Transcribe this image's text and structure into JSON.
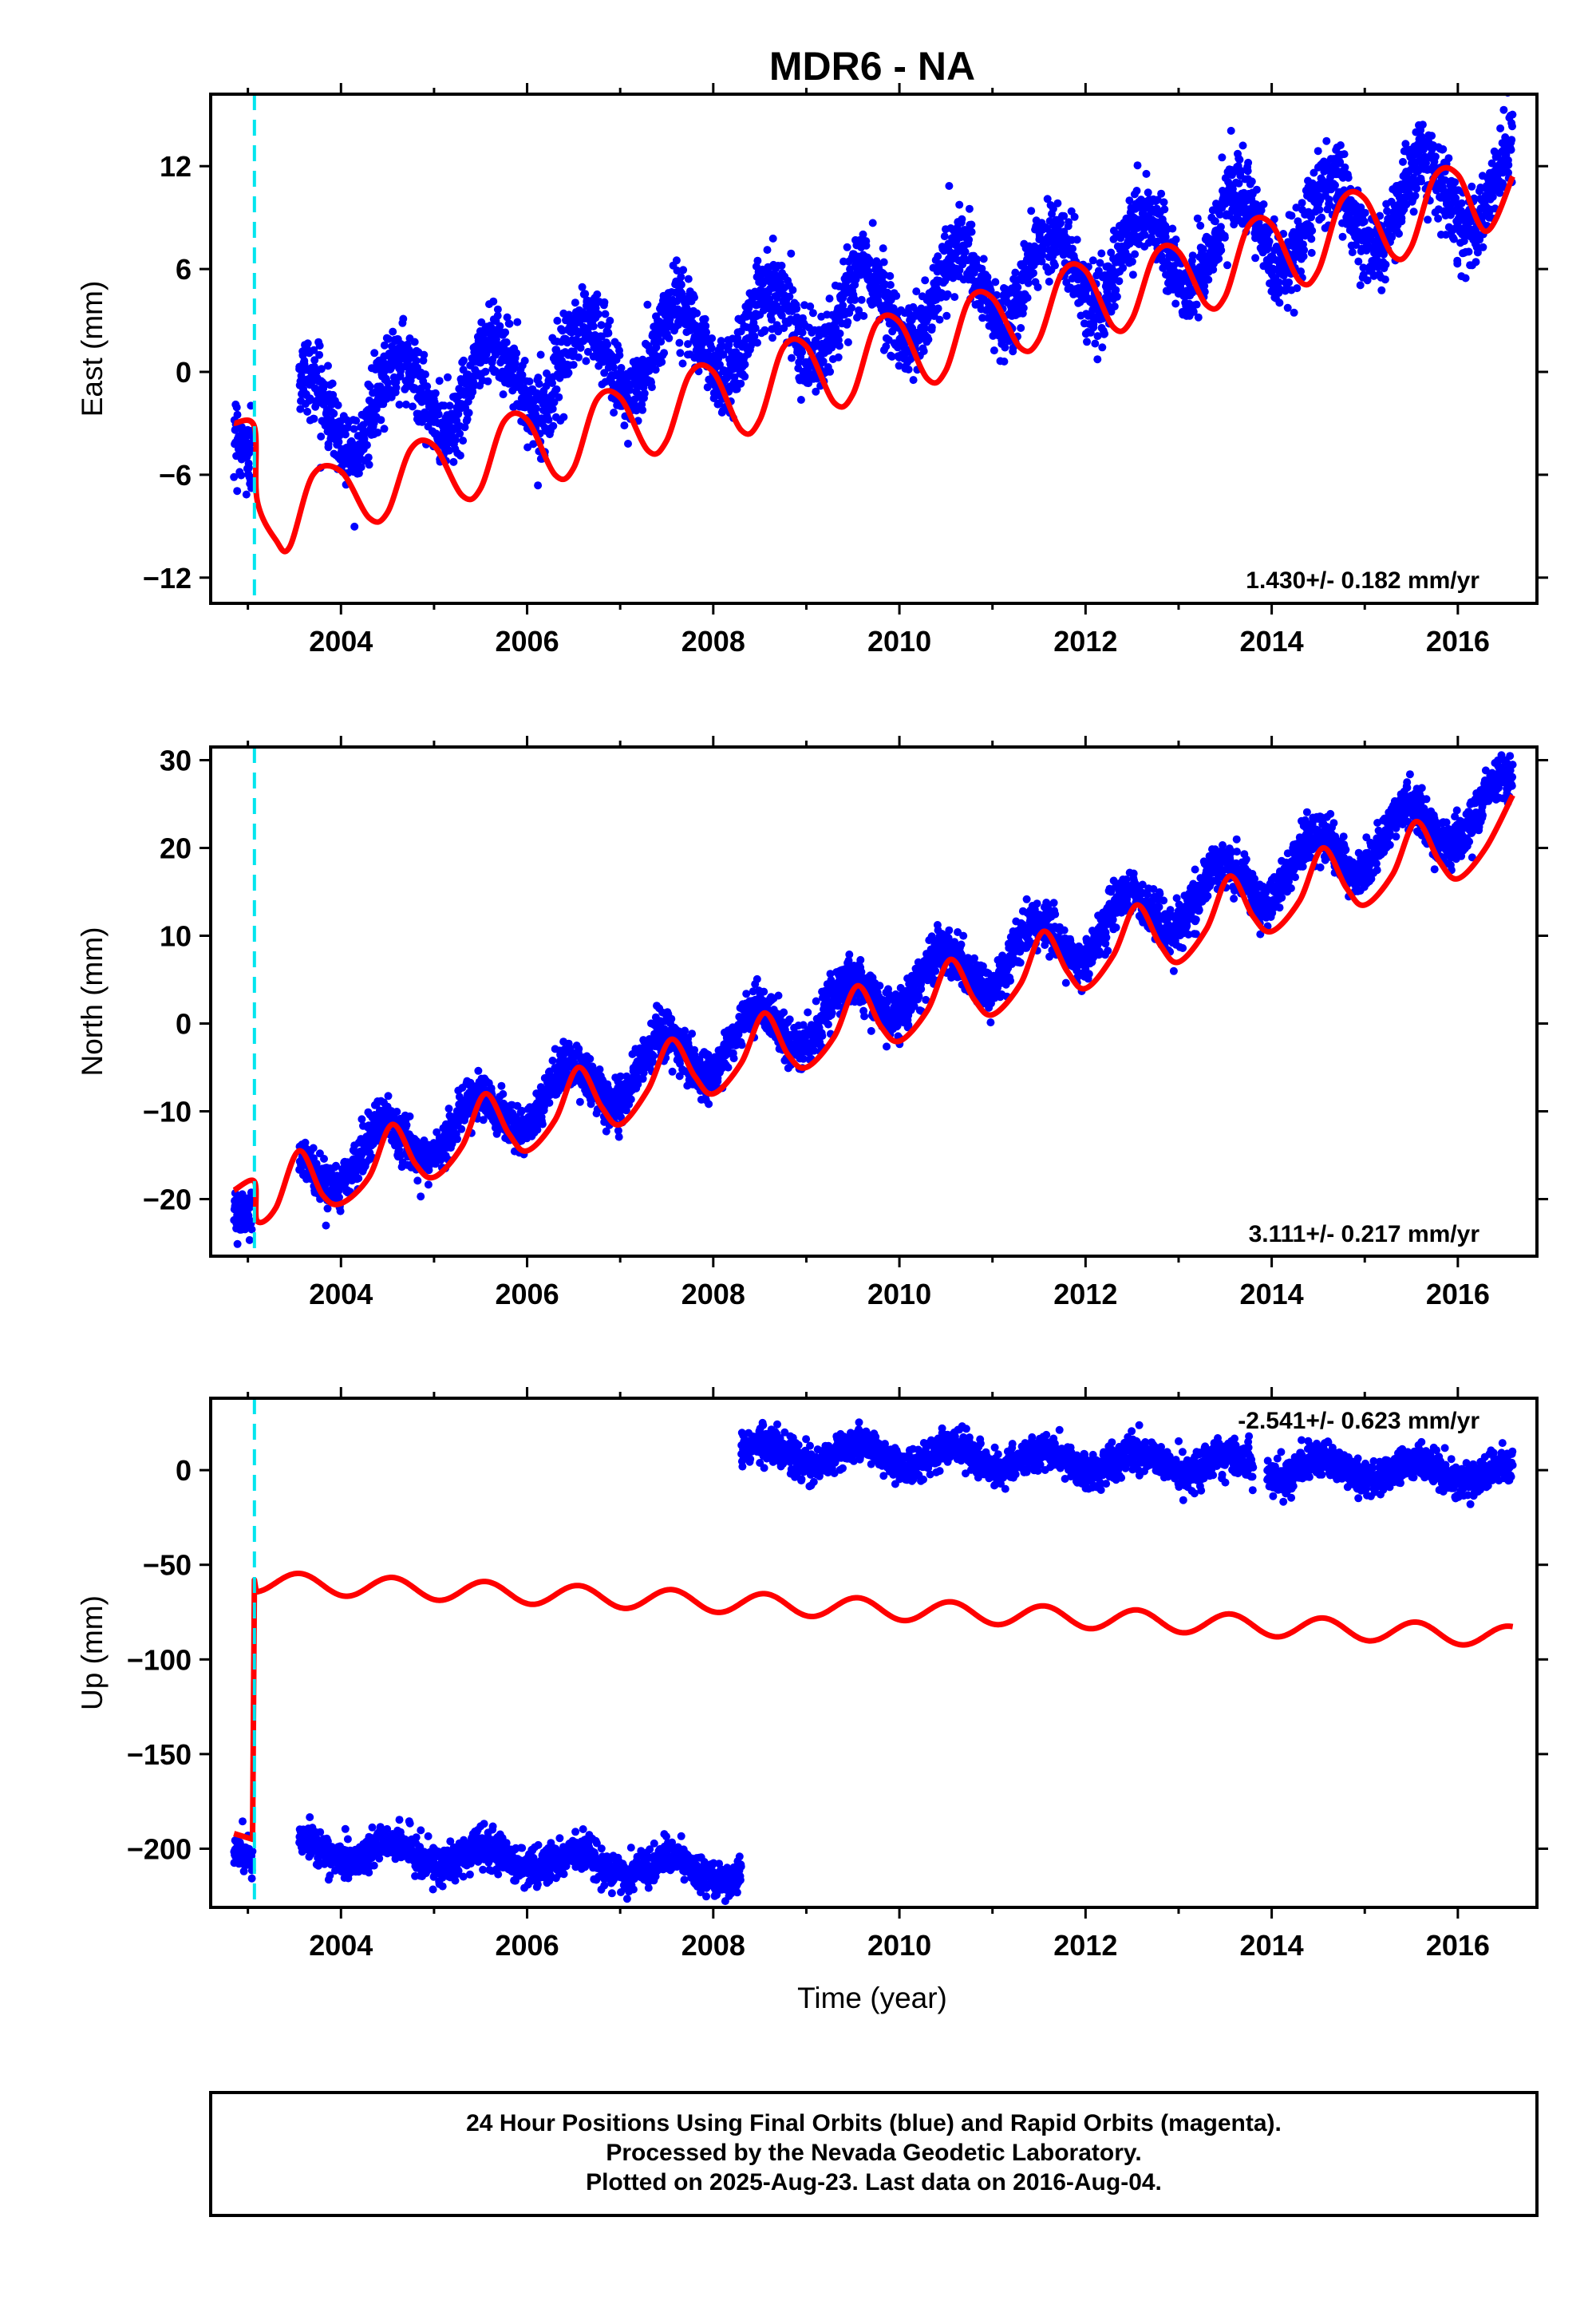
{
  "title": "MDR6 - NA",
  "xlabel": "Time (year)",
  "caption": {
    "line1": "24 Hour Positions Using Final Orbits (blue) and Rapid Orbits (magenta).",
    "line2": "Processed by the Nevada Geodetic Laboratory.",
    "line3": "Plotted on 2025-Aug-23. Last data on 2016-Aug-04."
  },
  "colors": {
    "data_points": "#0000ff",
    "model_line": "#ff0000",
    "event_marker": "#00e5ee",
    "frame": "#000000"
  },
  "chart_data": [
    {
      "type": "scatter",
      "ylabel": "East (mm)",
      "rate_label": "1.430+/- 0.182 mm/yr",
      "xlim": [
        2002.6,
        2016.85
      ],
      "ylim": [
        -13.5,
        16.2
      ],
      "xticks": [
        2004,
        2006,
        2008,
        2010,
        2012,
        2014,
        2016
      ],
      "yticks": [
        -12,
        -6,
        0,
        6,
        12
      ],
      "event_marker_x": 2003.07,
      "series": [
        {
          "kind": "points",
          "segments": [
            [
              2002.85,
              2003.05
            ],
            [
              2003.55,
              2016.59
            ]
          ],
          "trend": [
            [
              2002.85,
              -3.4
            ],
            [
              2016.59,
              11.0
            ]
          ],
          "annual_amp": 2.4,
          "annual_phase": 0.62,
          "noise_sd": 1.1,
          "count": 4000
        },
        {
          "kind": "model",
          "x": [
            2002.85,
            2003.07,
            2003.1,
            2003.3,
            2003.45,
            2003.7,
            2004.0,
            2004.3,
            2004.5,
            2004.75,
            2005.0,
            2005.3,
            2005.5,
            2005.75,
            2006.0,
            2006.3,
            2006.5,
            2006.75,
            2007.0,
            2007.3,
            2007.5,
            2007.75,
            2008.0,
            2008.3,
            2008.5,
            2008.75,
            2009.0,
            2009.3,
            2009.5,
            2009.75,
            2010.0,
            2010.3,
            2010.5,
            2010.75,
            2011.0,
            2011.3,
            2011.5,
            2011.75,
            2012.0,
            2012.3,
            2012.5,
            2012.75,
            2013.0,
            2013.3,
            2013.5,
            2013.75,
            2014.0,
            2014.3,
            2014.5,
            2014.75,
            2015.0,
            2015.3,
            2015.5,
            2015.75,
            2016.0,
            2016.3,
            2016.59
          ],
          "y": [
            -3.0,
            -3.2,
            -7.5,
            -9.8,
            -10.2,
            -6.0,
            -5.8,
            -8.5,
            -8.2,
            -4.5,
            -4.3,
            -7.2,
            -6.8,
            -2.9,
            -2.8,
            -6.0,
            -5.6,
            -1.6,
            -1.5,
            -4.6,
            -4.0,
            -0.1,
            0.0,
            -3.4,
            -2.8,
            1.4,
            1.5,
            -1.8,
            -1.3,
            2.8,
            2.9,
            -0.4,
            0.1,
            4.2,
            4.3,
            1.4,
            1.9,
            5.8,
            5.9,
            2.6,
            3.1,
            6.9,
            7.0,
            3.9,
            4.4,
            8.5,
            8.6,
            5.3,
            5.9,
            10.0,
            10.1,
            6.8,
            7.3,
            11.4,
            11.5,
            8.2,
            11.4
          ]
        }
      ]
    },
    {
      "type": "scatter",
      "ylabel": "North (mm)",
      "rate_label": "3.111+/- 0.217 mm/yr",
      "xlim": [
        2002.6,
        2016.85
      ],
      "ylim": [
        -26.5,
        31.5
      ],
      "xticks": [
        2004,
        2006,
        2008,
        2010,
        2012,
        2014,
        2016
      ],
      "yticks": [
        -20,
        -10,
        0,
        10,
        20,
        30
      ],
      "event_marker_x": 2003.07,
      "series": [
        {
          "kind": "points",
          "segments": [
            [
              2002.85,
              2003.05
            ],
            [
              2003.55,
              2016.59
            ]
          ],
          "trend": [
            [
              2002.85,
              -19.5
            ],
            [
              2016.59,
              25.5
            ]
          ],
          "annual_amp": 3.0,
          "annual_phase": 0.45,
          "noise_sd": 1.3,
          "count": 4000
        },
        {
          "kind": "model",
          "x": [
            2002.85,
            2003.07,
            2003.1,
            2003.3,
            2003.55,
            2003.8,
            2004.0,
            2004.3,
            2004.55,
            2004.8,
            2005.0,
            2005.3,
            2005.55,
            2005.8,
            2006.0,
            2006.3,
            2006.55,
            2006.8,
            2007.0,
            2007.3,
            2007.55,
            2007.8,
            2008.0,
            2008.3,
            2008.55,
            2008.8,
            2009.0,
            2009.3,
            2009.55,
            2009.8,
            2010.0,
            2010.3,
            2010.55,
            2010.8,
            2011.0,
            2011.3,
            2011.55,
            2011.8,
            2012.0,
            2012.3,
            2012.55,
            2012.8,
            2013.0,
            2013.3,
            2013.55,
            2013.8,
            2014.0,
            2014.3,
            2014.55,
            2014.8,
            2015.0,
            2015.3,
            2015.55,
            2015.8,
            2016.0,
            2016.3,
            2016.59
          ],
          "y": [
            -19.0,
            -18.0,
            -22.5,
            -21.0,
            -14.5,
            -19.5,
            -20.5,
            -17.5,
            -11.5,
            -16.0,
            -17.5,
            -14.0,
            -8.0,
            -12.5,
            -14.5,
            -11.0,
            -5.0,
            -9.5,
            -11.5,
            -7.5,
            -1.8,
            -6.0,
            -8.0,
            -4.5,
            1.2,
            -3.5,
            -5.0,
            -1.5,
            4.3,
            -0.3,
            -2.0,
            1.5,
            7.3,
            2.8,
            1.0,
            4.5,
            10.5,
            6.0,
            4.0,
            7.8,
            13.5,
            9.0,
            7.0,
            10.8,
            16.8,
            12.2,
            10.5,
            14.0,
            20.0,
            15.5,
            13.5,
            17.0,
            23.0,
            18.5,
            16.5,
            20.0,
            26.0
          ]
        }
      ]
    },
    {
      "type": "scatter",
      "ylabel": "Up (mm)",
      "rate_label": "-2.541+/- 0.623 mm/yr",
      "xlim": [
        2002.6,
        2016.85
      ],
      "ylim": [
        -231,
        38
      ],
      "xticks": [
        2004,
        2006,
        2008,
        2010,
        2012,
        2014,
        2016
      ],
      "yticks": [
        -200,
        -150,
        -100,
        -50,
        0
      ],
      "event_marker_x": 2003.07,
      "series": [
        {
          "kind": "points",
          "segments": [
            [
              2002.85,
              2003.05
            ],
            [
              2003.55,
              2008.3
            ]
          ],
          "trend": [
            [
              2002.85,
              -198
            ],
            [
              2008.3,
              -212
            ]
          ],
          "annual_amp": 5.5,
          "annual_phase": 0.55,
          "noise_sd": 4.5,
          "count": 1500
        },
        {
          "kind": "points",
          "segments": [
            [
              2008.3,
              2013.8
            ],
            [
              2013.95,
              2016.59
            ]
          ],
          "trend": [
            [
              2008.3,
              10
            ],
            [
              2016.59,
              -2
            ]
          ],
          "annual_amp": 5.5,
          "annual_phase": 0.55,
          "noise_sd": 4.5,
          "count": 2500
        },
        {
          "kind": "model",
          "x": [
            2002.85,
            2003.05,
            2003.07
          ],
          "y": [
            -192,
            -195,
            -58
          ],
          "baseline": [
            [
              2003.07,
              -59
            ],
            [
              2016.59,
              -88
            ]
          ],
          "annual_amp": 5.5,
          "annual_phase": 0.55,
          "end_x": 2016.59
        }
      ]
    }
  ]
}
